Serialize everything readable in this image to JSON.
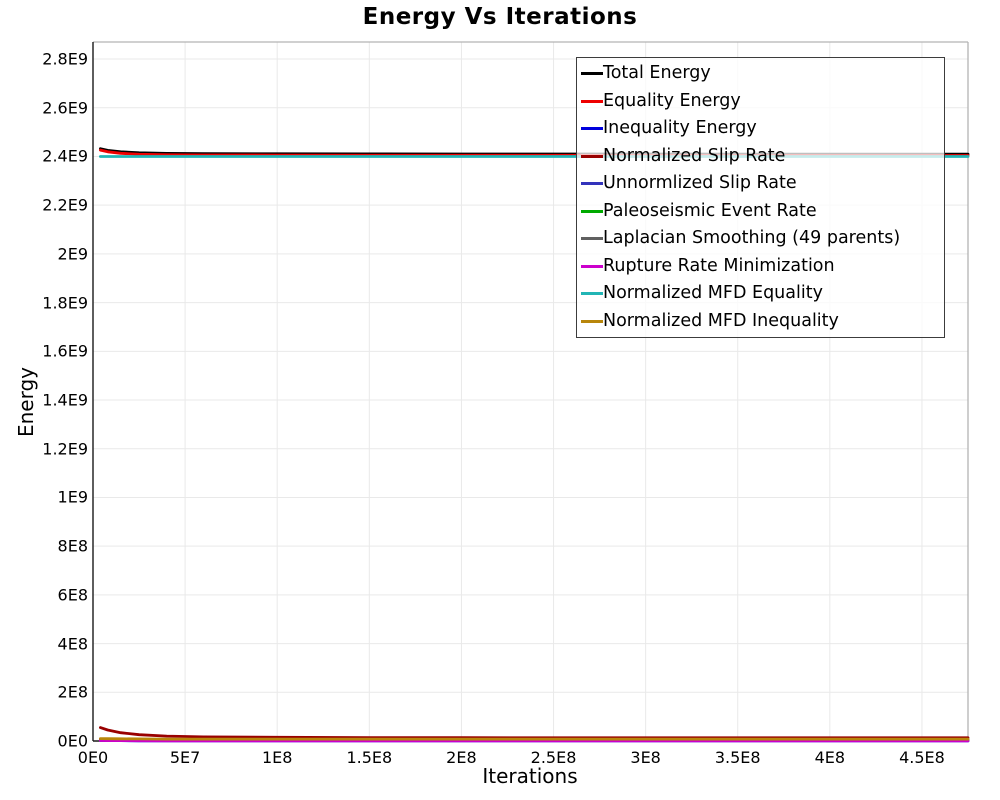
{
  "chart_data": {
    "type": "line",
    "title": "Energy Vs Iterations",
    "xlabel": "Iterations",
    "ylabel": "Energy",
    "xlim": [
      0,
      475000000
    ],
    "ylim": [
      0,
      2870000000
    ],
    "grid": true,
    "legend_position": "upper-right-inside",
    "x_ticks": {
      "labels": [
        "0E0",
        "5E7",
        "1E8",
        "1.5E8",
        "2E8",
        "2.5E8",
        "3E8",
        "3.5E8",
        "4E8",
        "4.5E8"
      ],
      "values": [
        0,
        50000000,
        100000000,
        150000000,
        200000000,
        250000000,
        300000000,
        350000000,
        400000000,
        450000000
      ]
    },
    "y_ticks": {
      "labels": [
        "0E0",
        "2E8",
        "4E8",
        "6E8",
        "8E8",
        "1E9",
        "1.2E9",
        "1.4E9",
        "1.6E9",
        "1.8E9",
        "2E9",
        "2.2E9",
        "2.4E9",
        "2.6E9",
        "2.8E9"
      ],
      "values": [
        0,
        200000000,
        400000000,
        600000000,
        800000000,
        1000000000,
        1200000000,
        1400000000,
        1600000000,
        1800000000,
        2000000000,
        2200000000,
        2400000000,
        2600000000,
        2800000000
      ]
    },
    "x": [
      4000000,
      8000000,
      15000000,
      25000000,
      40000000,
      60000000,
      100000000,
      150000000,
      200000000,
      300000000,
      400000000,
      475000000
    ],
    "series": [
      {
        "name": "Total Energy",
        "color": "#000000",
        "values": [
          2432000000,
          2425000000,
          2419000000,
          2415000000,
          2412500000,
          2411500000,
          2411000000,
          2410500000,
          2410000000,
          2410000000,
          2409500000,
          2409500000
        ]
      },
      {
        "name": "Equality Energy",
        "color": "#ee0000",
        "values": [
          2426000000,
          2419000000,
          2413000000,
          2409000000,
          2406800000,
          2406000000,
          2405500000,
          2405000000,
          2405000000,
          2404500000,
          2404000000,
          2404000000
        ]
      },
      {
        "name": "Inequality Energy",
        "color": "#0000dd",
        "values": [
          3000000,
          2000000,
          1500000,
          1000000,
          800000,
          700000,
          600000,
          500000,
          500000,
          500000,
          500000,
          500000
        ]
      },
      {
        "name": "Normalized Slip Rate",
        "color": "#990000",
        "values": [
          55000000,
          45000000,
          34000000,
          26000000,
          20000000,
          17000000,
          15000000,
          14000000,
          13500000,
          13000000,
          13000000,
          13000000
        ]
      },
      {
        "name": "Unnormlized Slip Rate",
        "color": "#3333bb",
        "values": [
          4000000,
          3500000,
          3000000,
          2500000,
          2000000,
          2000000,
          2000000,
          2000000,
          2000000,
          2000000,
          2000000,
          2000000
        ]
      },
      {
        "name": "Paleoseismic Event Rate",
        "color": "#00aa00",
        "values": [
          6000000,
          5000000,
          4500000,
          4000000,
          3500000,
          3500000,
          3500000,
          3500000,
          3500000,
          3500000,
          3500000,
          3500000
        ]
      },
      {
        "name": "Laplacian Smoothing (49 parents)",
        "color": "#606060",
        "values": [
          5000000,
          4500000,
          4000000,
          3500000,
          3000000,
          3000000,
          3000000,
          3000000,
          3000000,
          3000000,
          3000000,
          3000000
        ]
      },
      {
        "name": "Rupture Rate Minimization",
        "color": "#cc00cc",
        "values": [
          2000000,
          1800000,
          1500000,
          1200000,
          1000000,
          1000000,
          1000000,
          1000000,
          1000000,
          1000000,
          1000000,
          1000000
        ]
      },
      {
        "name": "Normalized MFD Equality",
        "color": "#22b5b5",
        "values": [
          2400000000,
          2400000000,
          2400000000,
          2400000000,
          2400000000,
          2400000000,
          2400000000,
          2400000000,
          2400000000,
          2400000000,
          2400000000,
          2400000000
        ]
      },
      {
        "name": "Normalized MFD Inequality",
        "color": "#b8860b",
        "values": [
          10000000,
          9500000,
          9000000,
          8500000,
          8000000,
          8000000,
          8000000,
          8000000,
          8000000,
          8000000,
          8000000,
          8000000
        ]
      }
    ]
  },
  "layout_colors": {
    "grid": "#e9e9e9",
    "axis": "#1a1a1a",
    "plot_outline": "#b3b3b3",
    "legend_border": "#3c3c3c"
  }
}
